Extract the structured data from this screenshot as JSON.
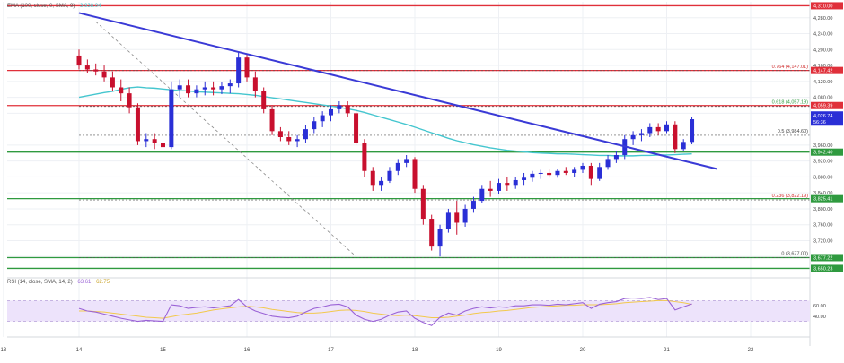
{
  "colors": {
    "bull": "#2a2fd6",
    "bear": "#c8102e",
    "ema": "#45c6cf",
    "trendline": "#3a3ad6",
    "hline_red": "#e0303a",
    "hline_green": "#2f9a3f",
    "fib_dashed": "#555555",
    "rsi_line": "#9a62d6",
    "rsi_sma": "#f2c94c",
    "rsi_band": "#ede3fb",
    "grid": "#eef0f4",
    "axis_text": "#444444"
  },
  "header": {
    "ema_text": "EMA (100, close, 0, SMA, 9)",
    "ema_value": "3,938.04"
  },
  "rsi_header": {
    "text": "RSI (14, close, SMA, 14, 2)",
    "rsi_value": "63.61",
    "sma_value": "62.75"
  },
  "chart_data": {
    "type": "candlestick",
    "ylim": [
      3640,
      4320
    ],
    "y_ticks": [
      3680,
      3720,
      3760,
      3800,
      3840,
      3880,
      3920,
      3960,
      4040,
      4080,
      4120,
      4160,
      4200,
      4240,
      4280
    ],
    "x_labels": [
      "13",
      "14",
      "15",
      "16",
      "17",
      "18",
      "19",
      "20",
      "21",
      "22"
    ],
    "x_label_index": [
      -9,
      0,
      10,
      20,
      30,
      40,
      50,
      60,
      70,
      80
    ],
    "ohlc": [
      [
        4185,
        4200,
        4150,
        4160
      ],
      [
        4160,
        4175,
        4140,
        4150
      ],
      [
        4150,
        4165,
        4135,
        4145
      ],
      [
        4145,
        4160,
        4120,
        4130
      ],
      [
        4130,
        4145,
        4095,
        4105
      ],
      [
        4105,
        4125,
        4070,
        4090
      ],
      [
        4090,
        4105,
        4040,
        4055
      ],
      [
        4055,
        4065,
        3960,
        3970
      ],
      [
        3970,
        3990,
        3955,
        3975
      ],
      [
        3975,
        3990,
        3950,
        3965
      ],
      [
        3965,
        3980,
        3935,
        3955
      ],
      [
        3955,
        4120,
        3950,
        4100
      ],
      [
        4100,
        4125,
        4080,
        4110
      ],
      [
        4110,
        4125,
        4080,
        4090
      ],
      [
        4090,
        4110,
        4080,
        4100
      ],
      [
        4100,
        4120,
        4085,
        4105
      ],
      [
        4105,
        4120,
        4085,
        4100
      ],
      [
        4100,
        4118,
        4088,
        4108
      ],
      [
        4108,
        4125,
        4090,
        4115
      ],
      [
        4115,
        4195,
        4105,
        4180
      ],
      [
        4180,
        4190,
        4120,
        4130
      ],
      [
        4130,
        4145,
        4080,
        4095
      ],
      [
        4095,
        4105,
        4040,
        4050
      ],
      [
        4050,
        4060,
        3985,
        3995
      ],
      [
        3995,
        4005,
        3970,
        3980
      ],
      [
        3980,
        3995,
        3960,
        3970
      ],
      [
        3970,
        3985,
        3955,
        3975
      ],
      [
        3975,
        4010,
        3965,
        4000
      ],
      [
        4000,
        4030,
        3990,
        4020
      ],
      [
        4020,
        4045,
        4005,
        4035
      ],
      [
        4035,
        4060,
        4020,
        4050
      ],
      [
        4050,
        4070,
        4040,
        4060
      ],
      [
        4060,
        4070,
        4030,
        4040
      ],
      [
        4040,
        4050,
        3960,
        3965
      ],
      [
        3965,
        3975,
        3880,
        3895
      ],
      [
        3895,
        3905,
        3845,
        3860
      ],
      [
        3860,
        3880,
        3845,
        3870
      ],
      [
        3870,
        3905,
        3865,
        3895
      ],
      [
        3895,
        3925,
        3885,
        3915
      ],
      [
        3915,
        3935,
        3905,
        3925
      ],
      [
        3925,
        3930,
        3840,
        3850
      ],
      [
        3850,
        3860,
        3760,
        3775
      ],
      [
        3775,
        3785,
        3695,
        3705
      ],
      [
        3705,
        3760,
        3680,
        3750
      ],
      [
        3750,
        3800,
        3740,
        3790
      ],
      [
        3790,
        3820,
        3735,
        3765
      ],
      [
        3765,
        3810,
        3755,
        3800
      ],
      [
        3800,
        3830,
        3790,
        3820
      ],
      [
        3820,
        3860,
        3815,
        3850
      ],
      [
        3850,
        3870,
        3830,
        3845
      ],
      [
        3845,
        3875,
        3838,
        3865
      ],
      [
        3865,
        3880,
        3845,
        3860
      ],
      [
        3860,
        3880,
        3850,
        3872
      ],
      [
        3872,
        3890,
        3860,
        3878
      ],
      [
        3878,
        3895,
        3868,
        3888
      ],
      [
        3888,
        3898,
        3875,
        3890
      ],
      [
        3890,
        3900,
        3878,
        3885
      ],
      [
        3885,
        3900,
        3878,
        3895
      ],
      [
        3895,
        3905,
        3885,
        3890
      ],
      [
        3890,
        3905,
        3880,
        3898
      ],
      [
        3898,
        3915,
        3890,
        3908
      ],
      [
        3908,
        3915,
        3860,
        3875
      ],
      [
        3875,
        3915,
        3870,
        3905
      ],
      [
        3905,
        3935,
        3898,
        3925
      ],
      [
        3925,
        3945,
        3915,
        3935
      ],
      [
        3935,
        3985,
        3925,
        3975
      ],
      [
        3975,
        3995,
        3960,
        3985
      ],
      [
        3985,
        4000,
        3970,
        3990
      ],
      [
        3990,
        4015,
        3980,
        4005
      ],
      [
        4005,
        4015,
        3985,
        3995
      ],
      [
        3995,
        4020,
        3990,
        4012
      ],
      [
        4012,
        4020,
        3940,
        3950
      ],
      [
        3950,
        3975,
        3945,
        3968
      ],
      [
        3968,
        4030,
        3962,
        4025
      ]
    ],
    "ema": [
      4080,
      4084,
      4088,
      4092,
      4095,
      4100,
      4104,
      4106,
      4104,
      4103,
      4101,
      4099,
      4097,
      4096,
      4094,
      4093,
      4092,
      4091,
      4090,
      4089,
      4087,
      4085,
      4082,
      4079,
      4076,
      4073,
      4070,
      4067,
      4064,
      4061,
      4058,
      4055,
      4051,
      4047,
      4042,
      4036,
      4030,
      4024,
      4018,
      4012,
      4005,
      3998,
      3991,
      3984,
      3977,
      3971,
      3966,
      3961,
      3957,
      3953,
      3950,
      3947,
      3945,
      3943,
      3941,
      3940,
      3939,
      3938,
      3938,
      3937,
      3936,
      3935,
      3934,
      3934,
      3933,
      3933,
      3933,
      3934,
      3934,
      3935,
      3935,
      3936,
      3937,
      3938
    ],
    "rsi": [
      55,
      50,
      48,
      44,
      40,
      36,
      33,
      30,
      32,
      31,
      30,
      62,
      60,
      55,
      57,
      58,
      56,
      58,
      60,
      72,
      58,
      50,
      45,
      40,
      38,
      37,
      40,
      48,
      55,
      58,
      62,
      63,
      58,
      42,
      34,
      30,
      34,
      42,
      48,
      50,
      36,
      28,
      22,
      38,
      46,
      42,
      50,
      55,
      58,
      56,
      58,
      57,
      60,
      60,
      62,
      62,
      61,
      63,
      62,
      64,
      66,
      55,
      63,
      66,
      68,
      74,
      75,
      74,
      76,
      72,
      74,
      52,
      58,
      63.61
    ],
    "rsi_sma": [
      50,
      50,
      49,
      48,
      46,
      44,
      42,
      40,
      38,
      37,
      36,
      39,
      42,
      44,
      46,
      49,
      52,
      54,
      56,
      58,
      59,
      58,
      56,
      53,
      51,
      49,
      47,
      46,
      46,
      47,
      49,
      51,
      52,
      51,
      49,
      46,
      44,
      42,
      41,
      42,
      41,
      39,
      37,
      37,
      38,
      40,
      42,
      45,
      47,
      48,
      50,
      51,
      53,
      55,
      57,
      58,
      59,
      60,
      61,
      61,
      62,
      62,
      62,
      63,
      64,
      66,
      67,
      68,
      69,
      70,
      70,
      68,
      66,
      62.75
    ],
    "rsi_ticks": [
      40.0,
      60.0
    ],
    "horizontal_levels": [
      {
        "value": 4310,
        "color": "red",
        "tag": "4,310.00"
      },
      {
        "value": 4147.42,
        "color": "red",
        "tag": "4,147.42"
      },
      {
        "value": 4059.39,
        "color": "red",
        "tag": "4,059.39"
      },
      {
        "value": 3942.4,
        "color": "green",
        "tag": "3,942.40"
      },
      {
        "value": 3825.41,
        "color": "green",
        "tag": "3,825.41"
      },
      {
        "value": 3677.22,
        "color": "green",
        "tag": "3,677.22"
      },
      {
        "value": 3650.23,
        "color": "green",
        "tag": "3,650.23"
      }
    ],
    "fib_levels": [
      {
        "value": 4147.01,
        "label": "0.764 (4,147.01)",
        "color": "red"
      },
      {
        "value": 4057.19,
        "label": "0.618 (4,057.19)",
        "color": "green"
      },
      {
        "value": 3984.6,
        "label": "0.5 (3,984.60)",
        "color": "black"
      },
      {
        "value": 3822.19,
        "label": "0.236 (3,822.19)",
        "color": "red"
      },
      {
        "value": 3677.0,
        "label": "0 (3,677.00)",
        "color": "black"
      }
    ],
    "trendline": {
      "from": [
        0,
        4292
      ],
      "to": [
        76,
        3900
      ]
    },
    "fib_diagonal": {
      "from": [
        2,
        4270
      ],
      "to": [
        33,
        3680
      ]
    },
    "current_price": {
      "value": 4026.74,
      "label": "4,026.74",
      "countdown": "56:36"
    }
  }
}
